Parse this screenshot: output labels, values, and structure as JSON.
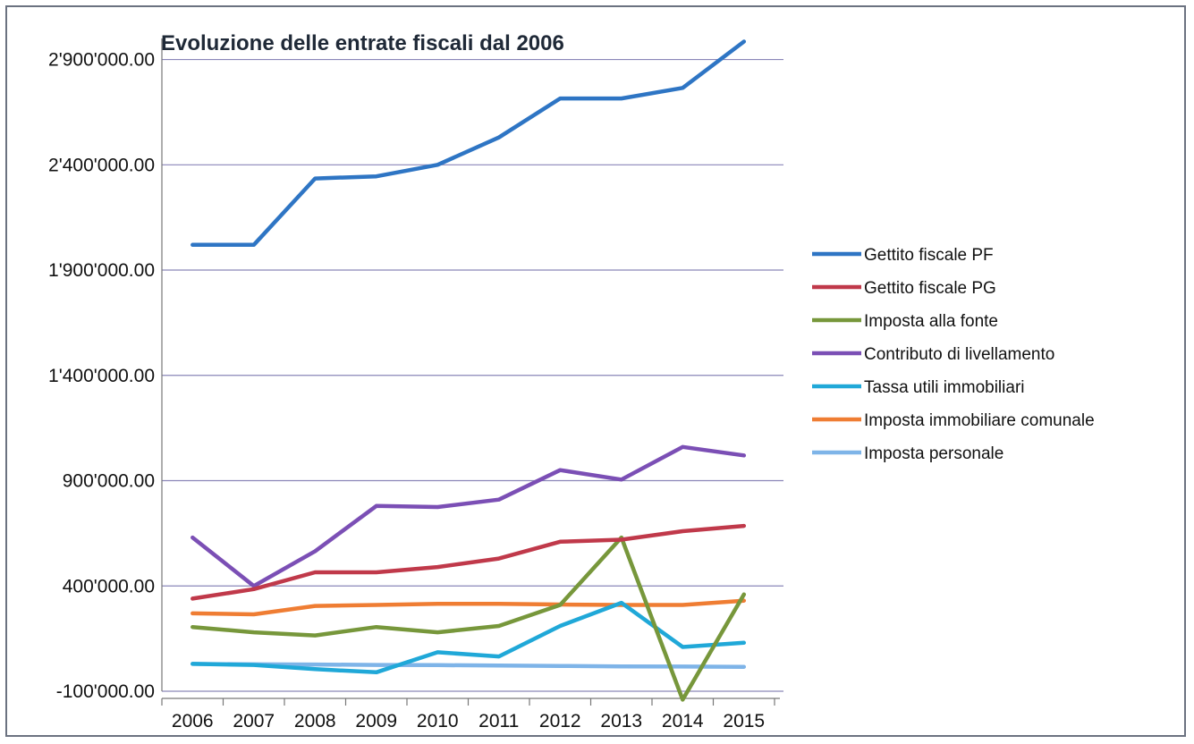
{
  "chart_data": {
    "type": "line",
    "title": "Evoluzione delle entrate fiscali dal 2006",
    "xlabel": "",
    "ylabel": "",
    "categories": [
      "2006",
      "2007",
      "2008",
      "2009",
      "2010",
      "2011",
      "2012",
      "2013",
      "2014",
      "2015"
    ],
    "ylim": [
      -100000,
      3000000
    ],
    "yticks": [
      -100000,
      400000,
      900000,
      1400000,
      1900000,
      2400000,
      2900000
    ],
    "ytick_labels": [
      "-100'000.00",
      "400'000.00",
      "900'000.00",
      "1'400'000.00",
      "1'900'000.00",
      "2'400'000.00",
      "2'900'000.00"
    ],
    "grid": true,
    "legend_position": "right",
    "series": [
      {
        "name": "Gettito fiscale PF",
        "color": "#2e75c4",
        "values": [
          2020000,
          2020000,
          2335000,
          2345000,
          2400000,
          2530000,
          2715000,
          2715000,
          2765000,
          2985000
        ]
      },
      {
        "name": "Gettito fiscale PG",
        "color": "#c0394a",
        "values": [
          340000,
          385000,
          465000,
          465000,
          490000,
          530000,
          610000,
          620000,
          660000,
          685000
        ]
      },
      {
        "name": "Imposta alla fonte",
        "color": "#77973b",
        "values": [
          205000,
          180000,
          165000,
          205000,
          180000,
          210000,
          310000,
          630000,
          -140000,
          360000
        ]
      },
      {
        "name": "Contributo di livellamento",
        "color": "#7b4fb5",
        "values": [
          630000,
          400000,
          565000,
          780000,
          775000,
          810000,
          950000,
          905000,
          1060000,
          1020000
        ]
      },
      {
        "name": "Tassa utili immobiliari",
        "color": "#20a8d8",
        "values": [
          30000,
          25000,
          5000,
          -10000,
          85000,
          65000,
          210000,
          320000,
          110000,
          130000
        ]
      },
      {
        "name": "Imposta immobiliare comunale",
        "color": "#ef7d33",
        "values": [
          270000,
          265000,
          305000,
          310000,
          315000,
          315000,
          312000,
          310000,
          310000,
          330000
        ]
      },
      {
        "name": "Imposta personale",
        "color": "#7eb4e8",
        "values": [
          30000,
          28000,
          27000,
          25000,
          24000,
          22000,
          20000,
          18000,
          17000,
          16000
        ]
      }
    ]
  }
}
